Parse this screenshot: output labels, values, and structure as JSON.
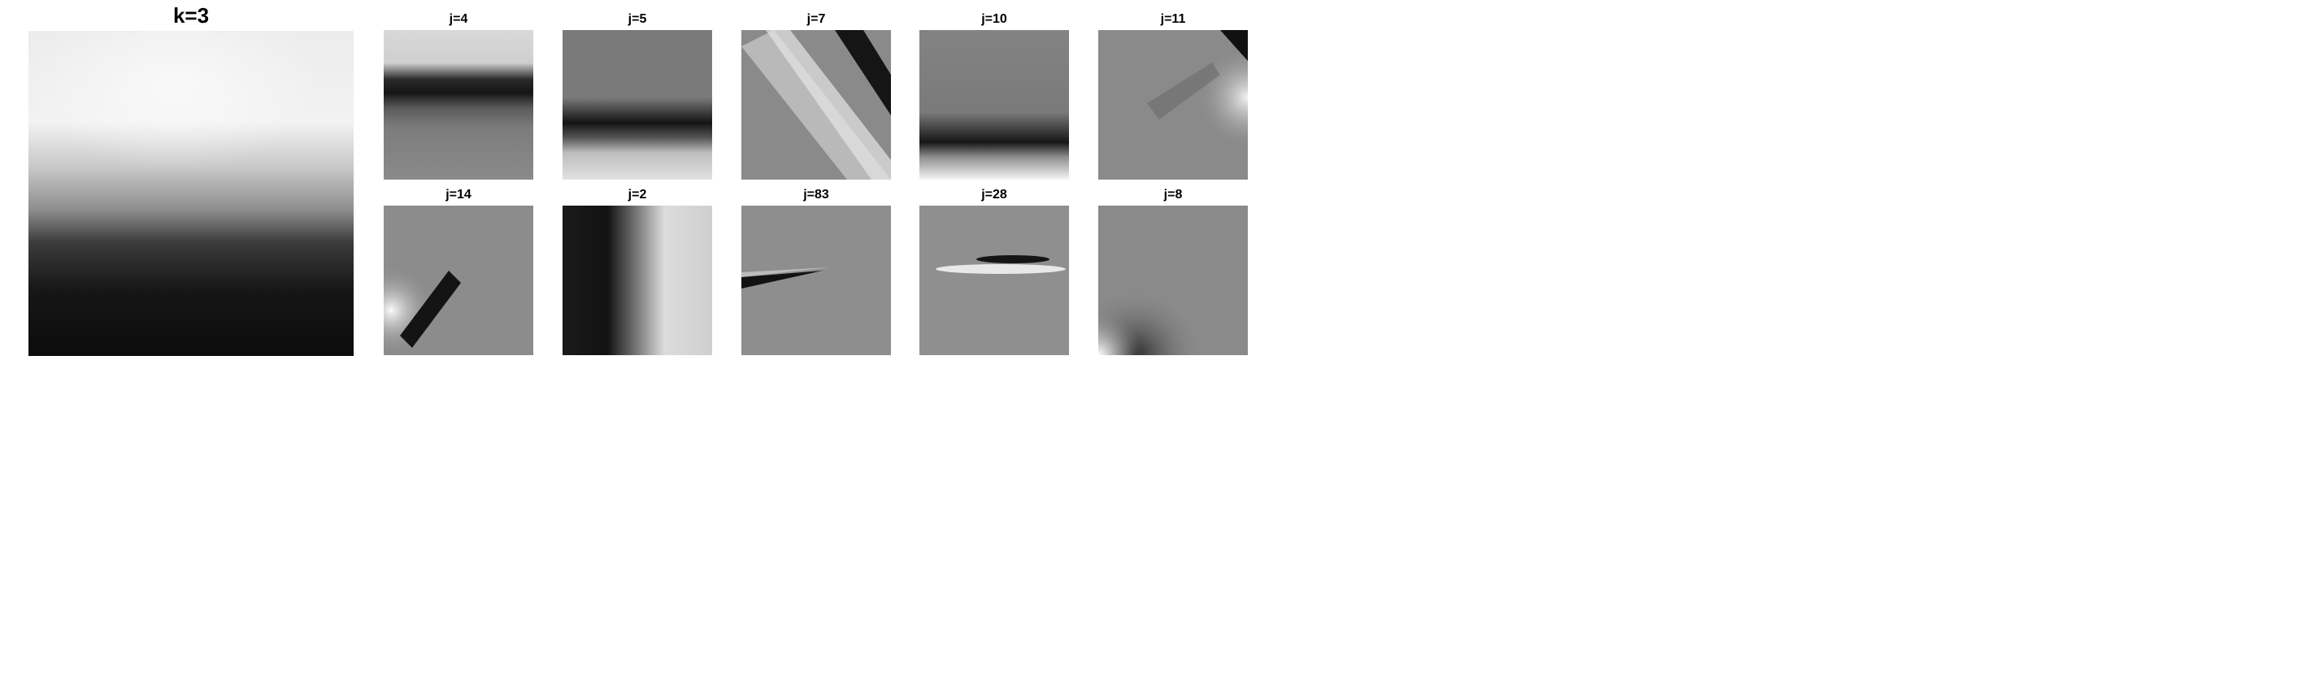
{
  "main": {
    "title": "k=3"
  },
  "tiles": [
    {
      "title": "j=4",
      "icon": "filter-j4-icon"
    },
    {
      "title": "j=5",
      "icon": "filter-j5-icon"
    },
    {
      "title": "j=7",
      "icon": "filter-j7-icon"
    },
    {
      "title": "j=10",
      "icon": "filter-j10-icon"
    },
    {
      "title": "j=11",
      "icon": "filter-j11-icon"
    },
    {
      "title": "j=14",
      "icon": "filter-j14-icon"
    },
    {
      "title": "j=2",
      "icon": "filter-j2-icon"
    },
    {
      "title": "j=83",
      "icon": "filter-j83-icon"
    },
    {
      "title": "j=28",
      "icon": "filter-j28-icon"
    },
    {
      "title": "j=8",
      "icon": "filter-j8-icon"
    }
  ]
}
